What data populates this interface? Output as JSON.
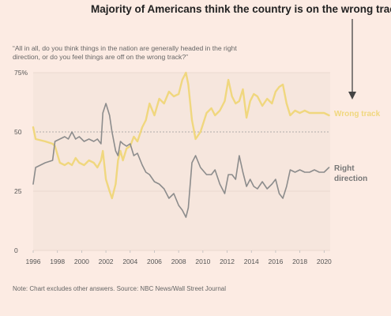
{
  "headline": "Majority of Americans think the country is on the wrong track",
  "question": "“All in all, do you think things in the nation are generally headed in the right direction, or do you feel things are off on the wrong track?”",
  "note": "Note: Chart excludes other answers. Source: NBC News/Wall Street Journal",
  "colors": {
    "background": "#fcebe3",
    "plot_background": "#f6e6dd",
    "wrong_track": "#f0d77e",
    "right_direction": "#8c8c8c",
    "arrow": "#444444"
  },
  "chart_data": {
    "type": "line",
    "xlim": [
      1996,
      2020.5
    ],
    "ylim": [
      0,
      75
    ],
    "x_ticks": [
      "1996",
      "1998",
      "2000",
      "2002",
      "2004",
      "2006",
      "2008",
      "2010",
      "2012",
      "2014",
      "2016",
      "2018",
      "2020"
    ],
    "y_ticks": [
      "75%",
      "50",
      "25",
      "0"
    ],
    "reference_line": 50,
    "series": [
      {
        "name": "Wrong track",
        "label_lines": [
          "Wrong track"
        ],
        "color": "#f0d77e",
        "x": [
          1996.0,
          1996.2,
          1997.0,
          1997.6,
          1997.8,
          1998.2,
          1998.6,
          1998.9,
          1999.2,
          1999.5,
          1999.8,
          2000.2,
          2000.6,
          2001.0,
          2001.3,
          2001.6,
          2001.75,
          2002.0,
          2002.3,
          2002.5,
          2002.8,
          2003.0,
          2003.2,
          2003.4,
          2003.7,
          2004.0,
          2004.3,
          2004.6,
          2005.0,
          2005.3,
          2005.6,
          2006.0,
          2006.4,
          2006.8,
          2007.2,
          2007.6,
          2008.0,
          2008.3,
          2008.6,
          2008.8,
          2009.1,
          2009.4,
          2009.8,
          2010.3,
          2010.7,
          2011.0,
          2011.4,
          2011.8,
          2012.1,
          2012.4,
          2012.7,
          2013.0,
          2013.3,
          2013.6,
          2013.9,
          2014.2,
          2014.5,
          2014.9,
          2015.3,
          2015.7,
          2016.0,
          2016.3,
          2016.6,
          2016.9,
          2017.2,
          2017.6,
          2018.0,
          2018.4,
          2018.8,
          2019.2,
          2019.6,
          2020.0,
          2020.4
        ],
        "y": [
          52,
          47,
          46,
          45,
          44,
          37,
          36,
          37,
          36,
          39,
          37,
          36,
          38,
          37,
          35,
          38,
          42,
          30,
          25,
          22,
          28,
          38,
          42,
          38,
          43,
          44,
          48,
          46,
          52,
          55,
          62,
          57,
          64,
          62,
          67,
          65,
          66,
          72,
          75,
          70,
          55,
          47,
          50,
          58,
          60,
          57,
          59,
          63,
          72,
          65,
          62,
          63,
          68,
          56,
          63,
          66,
          65,
          61,
          64,
          62,
          67,
          69,
          70,
          62,
          57,
          59,
          58,
          59,
          58,
          58,
          58,
          58,
          57
        ]
      },
      {
        "name": "Right direction",
        "label_lines": [
          "Right",
          "direction"
        ],
        "color": "#8c8c8c",
        "x": [
          1996.0,
          1996.2,
          1997.0,
          1997.6,
          1997.8,
          1998.2,
          1998.6,
          1998.9,
          1999.2,
          1999.5,
          1999.8,
          2000.2,
          2000.6,
          2001.0,
          2001.3,
          2001.6,
          2001.75,
          2002.0,
          2002.3,
          2002.5,
          2002.8,
          2003.0,
          2003.2,
          2003.4,
          2003.7,
          2004.0,
          2004.3,
          2004.6,
          2005.0,
          2005.3,
          2005.6,
          2006.0,
          2006.4,
          2006.8,
          2007.2,
          2007.6,
          2008.0,
          2008.3,
          2008.6,
          2008.8,
          2009.1,
          2009.4,
          2009.8,
          2010.3,
          2010.7,
          2011.0,
          2011.4,
          2011.8,
          2012.1,
          2012.4,
          2012.7,
          2013.0,
          2013.3,
          2013.6,
          2013.9,
          2014.2,
          2014.5,
          2014.9,
          2015.3,
          2015.7,
          2016.0,
          2016.3,
          2016.6,
          2016.9,
          2017.2,
          2017.6,
          2018.0,
          2018.4,
          2018.8,
          2019.2,
          2019.6,
          2020.0,
          2020.4
        ],
        "y": [
          28,
          35,
          37,
          38,
          46,
          47,
          48,
          47,
          50,
          47,
          48,
          46,
          47,
          46,
          47,
          45,
          58,
          62,
          57,
          50,
          42,
          40,
          46,
          45,
          44,
          45,
          40,
          41,
          36,
          33,
          32,
          29,
          28,
          26,
          22,
          24,
          19,
          17,
          14,
          18,
          37,
          40,
          35,
          32,
          32,
          34,
          28,
          24,
          32,
          32,
          30,
          40,
          33,
          27,
          30,
          27,
          26,
          29,
          26,
          28,
          30,
          24,
          22,
          27,
          34,
          33,
          34,
          33,
          33,
          34,
          33,
          33,
          35
        ]
      }
    ]
  }
}
